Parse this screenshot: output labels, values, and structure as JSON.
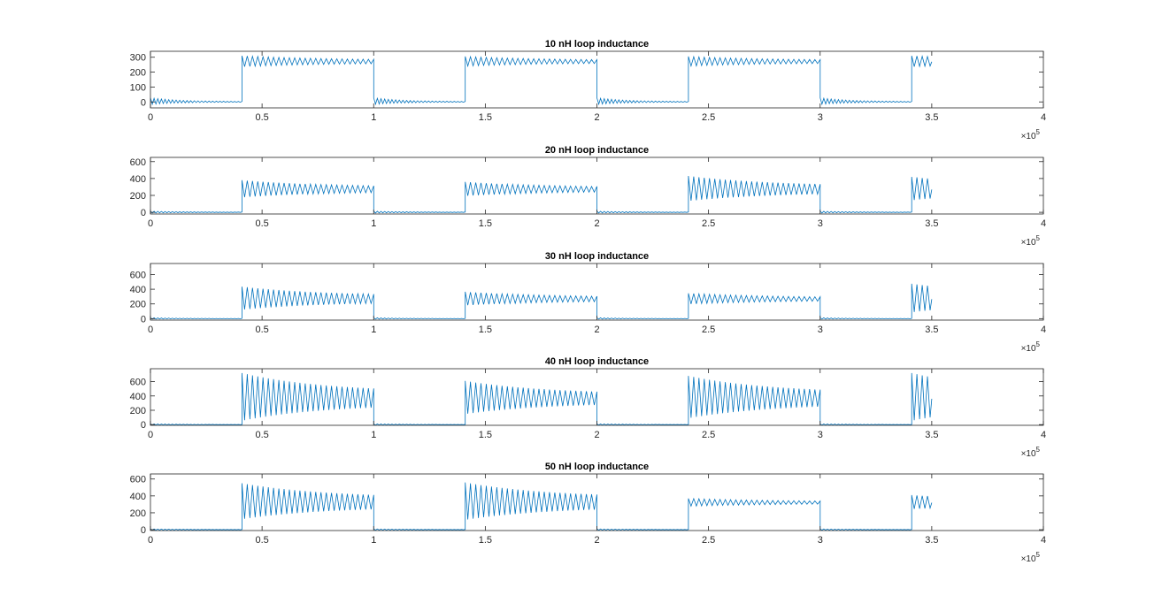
{
  "figure": {
    "background": "#ffffff",
    "line_color": "#0072BD",
    "axis_color": "#262626"
  },
  "chart_data": [
    {
      "type": "line",
      "title": "10 nH loop inductance",
      "xlim": [
        0,
        400000
      ],
      "ylim": [
        -40,
        340
      ],
      "xticks": [
        "0",
        "0.5",
        "1",
        "1.5",
        "2",
        "2.5",
        "3",
        "3.5",
        "4"
      ],
      "yticks": [
        "0",
        "100",
        "200",
        "300"
      ],
      "ytick_values": [
        0,
        100,
        200,
        300
      ],
      "x_exponent": "×10",
      "x_exponent_power": "5",
      "grid": false,
      "series": [
        {
          "pattern": "square wave with decaying ringing",
          "x_start": 0,
          "x_end": 350000,
          "period": 100000,
          "high_start": 41000,
          "high_end": 100000,
          "high_level": 270,
          "low_level": 0,
          "ring_amplitude_high": [
            40,
            35,
            35,
            40
          ],
          "ring_amplitude_low": [
            25,
            25,
            25,
            25
          ],
          "ring_cycles_per_segment": 50
        }
      ]
    },
    {
      "type": "line",
      "title": "20 nH loop inductance",
      "xlim": [
        0,
        400000
      ],
      "ylim": [
        -20,
        650
      ],
      "xticks": [
        "0",
        "0.5",
        "1",
        "1.5",
        "2",
        "2.5",
        "3",
        "3.5",
        "4"
      ],
      "yticks": [
        "0",
        "200",
        "400",
        "600"
      ],
      "ytick_values": [
        0,
        200,
        400,
        600
      ],
      "x_exponent": "×10",
      "x_exponent_power": "5",
      "grid": false,
      "series": [
        {
          "pattern": "square wave with decaying ringing",
          "x_start": 0,
          "x_end": 350000,
          "period": 100000,
          "high_start": 41000,
          "high_end": 100000,
          "high_level": 270,
          "low_level": 0,
          "ring_amplitude_high": [
            110,
            90,
            160,
            150
          ],
          "ring_amplitude_low": [
            12,
            12,
            12,
            12
          ],
          "ring_cycles_per_segment": 50
        }
      ]
    },
    {
      "type": "line",
      "title": "30 nH loop inductance",
      "xlim": [
        0,
        400000
      ],
      "ylim": [
        -20,
        750
      ],
      "xticks": [
        "0",
        "0.5",
        "1",
        "1.5",
        "2",
        "2.5",
        "3",
        "3.5",
        "4"
      ],
      "yticks": [
        "0",
        "200",
        "400",
        "600"
      ],
      "ytick_values": [
        0,
        200,
        400,
        600
      ],
      "x_exponent": "×10",
      "x_exponent_power": "5",
      "grid": false,
      "series": [
        {
          "pattern": "square wave with decaying ringing",
          "x_start": 0,
          "x_end": 350000,
          "period": 100000,
          "high_start": 41000,
          "high_end": 100000,
          "high_level": 265,
          "low_level": 0,
          "ring_amplitude_high": [
            170,
            100,
            80,
            210
          ],
          "ring_amplitude_low": [
            10,
            10,
            10,
            10
          ],
          "ring_cycles_per_segment": 50
        }
      ]
    },
    {
      "type": "line",
      "title": "40 nH loop inductance",
      "xlim": [
        0,
        400000
      ],
      "ylim": [
        -10,
        780
      ],
      "xticks": [
        "0",
        "0.5",
        "1",
        "1.5",
        "2",
        "2.5",
        "3",
        "3.5",
        "4"
      ],
      "yticks": [
        "0",
        "200",
        "400",
        "600"
      ],
      "ytick_values": [
        0,
        200,
        400,
        600
      ],
      "x_exponent": "×10",
      "x_exponent_power": "5",
      "grid": false,
      "series": [
        {
          "pattern": "square wave with decaying ringing",
          "x_start": 0,
          "x_end": 350000,
          "period": 100000,
          "high_start": 41000,
          "high_end": 100000,
          "high_level": 360,
          "low_level": 0,
          "ring_amplitude_high": [
            360,
            250,
            320,
            360
          ],
          "ring_amplitude_low": [
            8,
            8,
            8,
            8
          ],
          "ring_cycles_per_segment": 50
        }
      ]
    },
    {
      "type": "line",
      "title": "50 nH loop inductance",
      "xlim": [
        0,
        400000
      ],
      "ylim": [
        -10,
        660
      ],
      "xticks": [
        "0",
        "0.5",
        "1",
        "1.5",
        "2",
        "2.5",
        "3",
        "3.5",
        "4"
      ],
      "yticks": [
        "0",
        "200",
        "400",
        "600"
      ],
      "ytick_values": [
        0,
        200,
        400,
        600
      ],
      "x_exponent": "×10",
      "x_exponent_power": "5",
      "grid": false,
      "series": [
        {
          "pattern": "square wave with decaying ringing",
          "x_start": 0,
          "x_end": 350000,
          "period": 100000,
          "high_start": 41000,
          "high_end": 100000,
          "high_level": 320,
          "low_level": 0,
          "ring_amplitude_high": [
            230,
            240,
            50,
            90
          ],
          "ring_amplitude_low": [
            8,
            8,
            8,
            8
          ],
          "ring_cycles_per_segment": 50
        }
      ]
    }
  ]
}
